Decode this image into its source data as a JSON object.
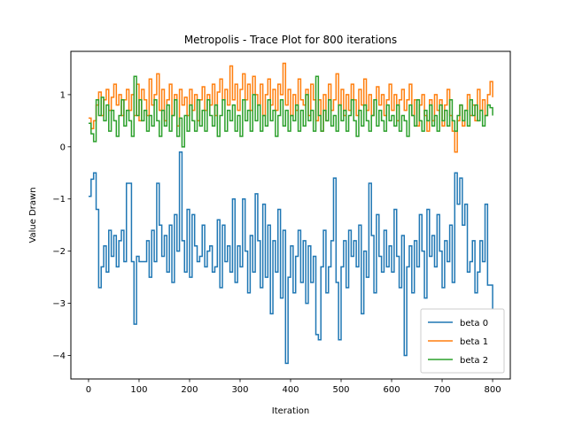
{
  "chart_data": {
    "type": "line",
    "title": "Metropolis - Trace Plot for 800 iterations",
    "xlabel": "Iteration",
    "ylabel": "Value Drawn",
    "xlim": [
      -35,
      835
    ],
    "ylim": [
      -4.45,
      1.83
    ],
    "xticks": [
      0,
      100,
      200,
      300,
      400,
      500,
      600,
      700,
      800
    ],
    "yticks": [
      -4,
      -3,
      -2,
      -1,
      0,
      1
    ],
    "grid": false,
    "legend_position": "lower-right",
    "series": [
      {
        "name": "beta 0",
        "color": "#1f77b4",
        "x": [
          0,
          5,
          10,
          15,
          20,
          25,
          30,
          35,
          40,
          45,
          50,
          55,
          60,
          65,
          70,
          75,
          80,
          85,
          90,
          95,
          100,
          105,
          110,
          115,
          120,
          125,
          130,
          135,
          140,
          145,
          150,
          155,
          160,
          165,
          170,
          175,
          180,
          185,
          190,
          195,
          200,
          205,
          210,
          215,
          220,
          225,
          230,
          235,
          240,
          245,
          250,
          255,
          260,
          265,
          270,
          275,
          280,
          285,
          290,
          295,
          300,
          305,
          310,
          315,
          320,
          325,
          330,
          335,
          340,
          345,
          350,
          355,
          360,
          365,
          370,
          375,
          380,
          385,
          390,
          395,
          400,
          405,
          410,
          415,
          420,
          425,
          430,
          435,
          440,
          445,
          450,
          455,
          460,
          465,
          470,
          475,
          480,
          485,
          490,
          495,
          500,
          505,
          510,
          515,
          520,
          525,
          530,
          535,
          540,
          545,
          550,
          555,
          560,
          565,
          570,
          575,
          580,
          585,
          590,
          595,
          600,
          605,
          610,
          615,
          620,
          625,
          630,
          635,
          640,
          645,
          650,
          655,
          660,
          665,
          670,
          675,
          680,
          685,
          690,
          695,
          700,
          705,
          710,
          715,
          720,
          725,
          730,
          735,
          740,
          745,
          750,
          755,
          760,
          765,
          770,
          775,
          780,
          785,
          790,
          795,
          800
        ],
        "y": [
          -0.95,
          -0.62,
          -0.5,
          -1.2,
          -2.7,
          -2.3,
          -1.9,
          -2.4,
          -1.6,
          -2.1,
          -1.7,
          -2.3,
          -1.8,
          -1.6,
          -2.2,
          -0.7,
          -0.7,
          -2.2,
          -3.4,
          -2.1,
          -2.2,
          -2.2,
          -2.2,
          -1.8,
          -2.5,
          -1.6,
          -2.2,
          -0.7,
          -1.5,
          -2.1,
          -1.7,
          -2.4,
          -1.5,
          -2.6,
          -1.3,
          -2.0,
          -0.1,
          -1.8,
          -2.4,
          -1.2,
          -2.5,
          -1.3,
          -1.9,
          -2.2,
          -2.1,
          -1.5,
          -2.3,
          -2.0,
          -1.9,
          -2.4,
          -2.3,
          -1.4,
          -2.7,
          -1.5,
          -2.2,
          -1.9,
          -2.4,
          -1.0,
          -2.6,
          -1.9,
          -2.3,
          -1.0,
          -2.0,
          -2.8,
          -1.7,
          -2.4,
          -0.9,
          -1.8,
          -2.7,
          -1.1,
          -2.5,
          -1.5,
          -3.2,
          -1.8,
          -2.4,
          -1.2,
          -2.9,
          -1.6,
          -4.15,
          -2.5,
          -1.9,
          -2.8,
          -2.1,
          -1.6,
          -2.6,
          -1.8,
          -3.0,
          -1.9,
          -2.6,
          -2.1,
          -3.6,
          -3.7,
          -2.3,
          -1.6,
          -2.8,
          -2.3,
          -1.8,
          -0.6,
          -2.6,
          -3.7,
          -2.3,
          -1.8,
          -2.7,
          -1.6,
          -2.1,
          -1.8,
          -2.3,
          -1.5,
          -3.2,
          -2.0,
          -2.5,
          -0.7,
          -1.7,
          -2.8,
          -1.3,
          -2.1,
          -2.4,
          -1.6,
          -2.3,
          -1.9,
          -2.4,
          -1.2,
          -2.1,
          -2.7,
          -1.7,
          -4.0,
          -2.3,
          -1.9,
          -2.8,
          -1.8,
          -2.3,
          -1.3,
          -2.0,
          -2.9,
          -1.2,
          -2.1,
          -1.7,
          -2.3,
          -1.3,
          -2.0,
          -2.7,
          -1.8,
          -2.2,
          -1.5,
          -2.6,
          -0.5,
          -1.1,
          -0.6,
          -1.5,
          -1.1,
          -2.4,
          -2.2,
          -1.8,
          -2.8,
          -2.4,
          -1.8,
          -2.2,
          -1.1,
          -2.65,
          -2.65,
          -3.1
        ]
      },
      {
        "name": "beta 1",
        "color": "#ff7f0e",
        "x": [
          0,
          5,
          10,
          15,
          20,
          25,
          30,
          35,
          40,
          45,
          50,
          55,
          60,
          65,
          70,
          75,
          80,
          85,
          90,
          95,
          100,
          105,
          110,
          115,
          120,
          125,
          130,
          135,
          140,
          145,
          150,
          155,
          160,
          165,
          170,
          175,
          180,
          185,
          190,
          195,
          200,
          205,
          210,
          215,
          220,
          225,
          230,
          235,
          240,
          245,
          250,
          255,
          260,
          265,
          270,
          275,
          280,
          285,
          290,
          295,
          300,
          305,
          310,
          315,
          320,
          325,
          330,
          335,
          340,
          345,
          350,
          355,
          360,
          365,
          370,
          375,
          380,
          385,
          390,
          395,
          400,
          405,
          410,
          415,
          420,
          425,
          430,
          435,
          440,
          445,
          450,
          455,
          460,
          465,
          470,
          475,
          480,
          485,
          490,
          495,
          500,
          505,
          510,
          515,
          520,
          525,
          530,
          535,
          540,
          545,
          550,
          555,
          560,
          565,
          570,
          575,
          580,
          585,
          590,
          595,
          600,
          605,
          610,
          615,
          620,
          625,
          630,
          635,
          640,
          645,
          650,
          655,
          660,
          665,
          670,
          675,
          680,
          685,
          690,
          695,
          700,
          705,
          710,
          715,
          720,
          725,
          730,
          735,
          740,
          745,
          750,
          755,
          760,
          765,
          770,
          775,
          780,
          785,
          790,
          795,
          800
        ],
        "y": [
          0.55,
          0.35,
          0.5,
          0.8,
          1.05,
          0.6,
          0.9,
          1.1,
          0.7,
          0.95,
          1.2,
          0.8,
          1.0,
          0.6,
          0.9,
          1.1,
          0.7,
          1.0,
          0.6,
          1.2,
          0.5,
          1.1,
          0.9,
          0.6,
          1.3,
          0.8,
          1.0,
          1.4,
          0.7,
          1.1,
          0.5,
          0.9,
          1.2,
          0.6,
          1.0,
          0.4,
          1.1,
          0.8,
          0.95,
          0.6,
          1.1,
          0.7,
          1.0,
          0.5,
          0.9,
          1.15,
          0.7,
          1.0,
          0.8,
          1.2,
          0.6,
          1.05,
          1.3,
          0.9,
          1.1,
          0.8,
          1.55,
          0.9,
          1.2,
          0.7,
          1.1,
          1.4,
          0.9,
          1.2,
          0.7,
          1.35,
          1.0,
          0.8,
          1.2,
          0.6,
          1.0,
          1.3,
          0.8,
          1.1,
          0.7,
          1.2,
          1.0,
          1.6,
          0.8,
          1.1,
          0.6,
          1.0,
          0.7,
          1.3,
          0.9,
          0.8,
          1.1,
          0.6,
          1.2,
          0.9,
          0.5,
          0.9,
          0.3,
          1.0,
          0.5,
          1.2,
          0.7,
          0.9,
          1.4,
          0.8,
          1.1,
          0.6,
          1.0,
          0.7,
          1.2,
          0.9,
          0.6,
          1.1,
          0.8,
          1.3,
          0.7,
          1.0,
          0.6,
          0.9,
          1.15,
          0.8,
          1.0,
          0.6,
          0.9,
          1.2,
          0.7,
          1.0,
          0.5,
          0.9,
          1.1,
          0.7,
          0.9,
          1.2,
          0.6,
          0.9,
          0.4,
          0.8,
          1.0,
          0.6,
          0.3,
          0.9,
          0.5,
          1.0,
          0.7,
          0.9,
          0.4,
          0.8,
          1.1,
          0.6,
          0.3,
          -0.1,
          0.5,
          0.8,
          0.4,
          0.7,
          1.0,
          0.6,
          0.8,
          0.5,
          1.1,
          0.7,
          0.9,
          0.6,
          1.0,
          1.25,
          0.95
        ]
      },
      {
        "name": "beta 2",
        "color": "#2ca02c",
        "x": [
          0,
          5,
          10,
          15,
          20,
          25,
          30,
          35,
          40,
          45,
          50,
          55,
          60,
          65,
          70,
          75,
          80,
          85,
          90,
          95,
          100,
          105,
          110,
          115,
          120,
          125,
          130,
          135,
          140,
          145,
          150,
          155,
          160,
          165,
          170,
          175,
          180,
          185,
          190,
          195,
          200,
          205,
          210,
          215,
          220,
          225,
          230,
          235,
          240,
          245,
          250,
          255,
          260,
          265,
          270,
          275,
          280,
          285,
          290,
          295,
          300,
          305,
          310,
          315,
          320,
          325,
          330,
          335,
          340,
          345,
          350,
          355,
          360,
          365,
          370,
          375,
          380,
          385,
          390,
          395,
          400,
          405,
          410,
          415,
          420,
          425,
          430,
          435,
          440,
          445,
          450,
          455,
          460,
          465,
          470,
          475,
          480,
          485,
          490,
          495,
          500,
          505,
          510,
          515,
          520,
          525,
          530,
          535,
          540,
          545,
          550,
          555,
          560,
          565,
          570,
          575,
          580,
          585,
          590,
          595,
          600,
          605,
          610,
          615,
          620,
          625,
          630,
          635,
          640,
          645,
          650,
          655,
          660,
          665,
          670,
          675,
          680,
          685,
          690,
          695,
          700,
          705,
          710,
          715,
          720,
          725,
          730,
          735,
          740,
          745,
          750,
          755,
          760,
          765,
          770,
          775,
          780,
          785,
          790,
          795,
          800
        ],
        "y": [
          0.45,
          0.25,
          0.1,
          0.9,
          0.6,
          0.95,
          0.5,
          0.8,
          0.3,
          0.7,
          0.5,
          0.2,
          0.6,
          0.9,
          0.4,
          0.7,
          0.5,
          0.2,
          1.35,
          0.6,
          0.9,
          0.5,
          0.7,
          0.3,
          0.6,
          0.4,
          0.9,
          0.5,
          0.2,
          0.7,
          0.4,
          0.8,
          0.3,
          0.6,
          0.9,
          0.2,
          0.55,
          0.0,
          0.6,
          0.3,
          0.8,
          0.5,
          0.3,
          0.9,
          0.4,
          0.7,
          0.3,
          0.9,
          0.6,
          0.4,
          0.8,
          0.2,
          0.6,
          0.9,
          0.3,
          0.7,
          0.5,
          0.8,
          0.3,
          0.6,
          0.2,
          0.9,
          0.5,
          0.7,
          0.3,
          1.0,
          0.5,
          0.8,
          0.3,
          0.6,
          0.4,
          0.9,
          0.5,
          0.7,
          0.2,
          0.6,
          0.9,
          0.4,
          0.7,
          0.3,
          0.6,
          0.5,
          0.8,
          0.3,
          0.7,
          0.4,
          1.0,
          0.5,
          0.7,
          0.3,
          1.35,
          0.6,
          0.3,
          0.7,
          0.5,
          0.9,
          0.4,
          0.6,
          0.3,
          0.8,
          0.5,
          0.7,
          0.3,
          0.6,
          0.9,
          0.5,
          0.2,
          0.7,
          0.4,
          0.8,
          0.5,
          0.3,
          0.6,
          0.9,
          0.4,
          0.7,
          0.5,
          0.3,
          0.8,
          0.5,
          0.6,
          0.4,
          0.8,
          0.3,
          0.6,
          0.5,
          0.2,
          0.8,
          0.6,
          0.4,
          0.9,
          0.5,
          0.3,
          0.7,
          0.5,
          0.8,
          0.4,
          0.6,
          0.3,
          0.8,
          0.5,
          0.7,
          0.4,
          0.9,
          0.5,
          0.3,
          0.6,
          0.8,
          0.5,
          0.7,
          0.4,
          0.9,
          0.6,
          0.8,
          0.5,
          0.7,
          0.4,
          0.6,
          0.8,
          0.75,
          0.6
        ]
      }
    ]
  }
}
